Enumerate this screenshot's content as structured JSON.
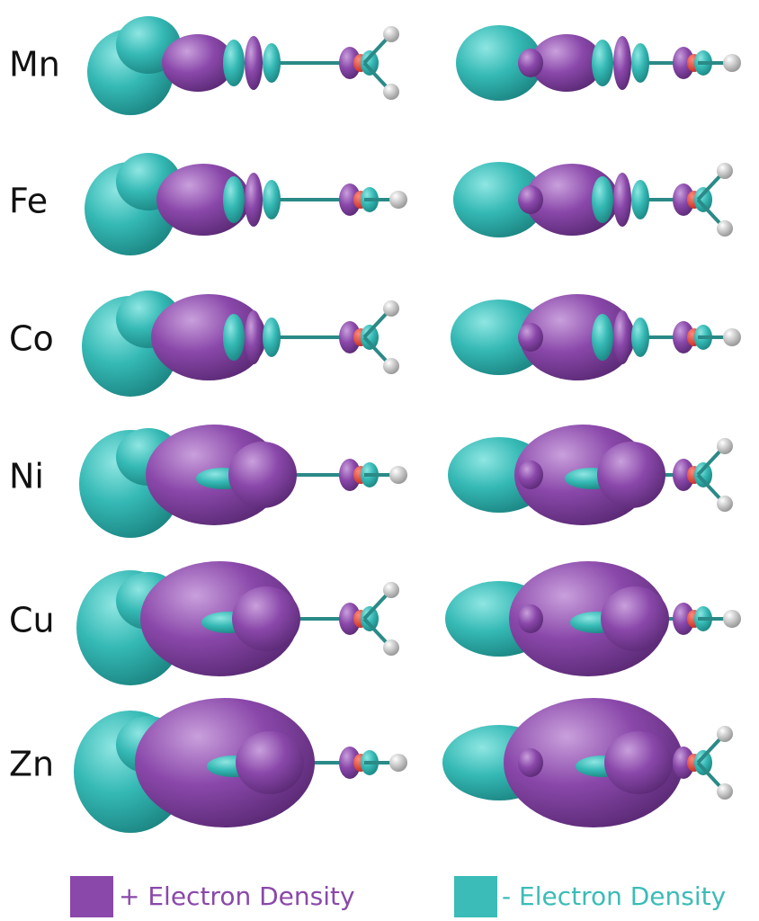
{
  "rows": [
    {
      "label": "Mn"
    },
    {
      "label": "Fe"
    },
    {
      "label": "Co"
    },
    {
      "label": "Ni"
    },
    {
      "label": "Cu"
    },
    {
      "label": "Zn"
    }
  ],
  "legend": [
    {
      "label": "+ Electron Density"
    },
    {
      "label": "- Electron Density"
    }
  ]
}
